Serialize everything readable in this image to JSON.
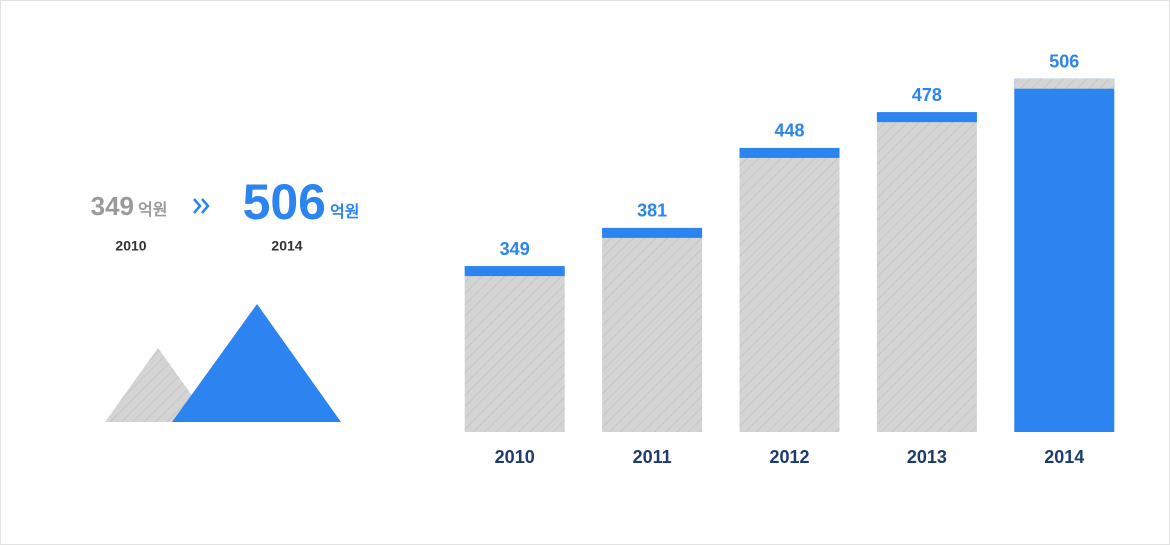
{
  "summary": {
    "from_value": 349,
    "from_unit": "억원",
    "from_year": "2010",
    "to_value": 506,
    "to_unit": "억원",
    "to_year": "2014"
  },
  "chart_data": {
    "type": "bar",
    "categories": [
      "2010",
      "2011",
      "2012",
      "2013",
      "2014"
    ],
    "values": [
      349,
      381,
      448,
      478,
      506
    ],
    "colors": [
      "#d4d4d4",
      "#d4d4d4",
      "#d4d4d4",
      "#d4d4d4",
      "#2b84ef"
    ],
    "cap_color": "#2b84ef",
    "ylim": [
      210,
      520
    ]
  }
}
